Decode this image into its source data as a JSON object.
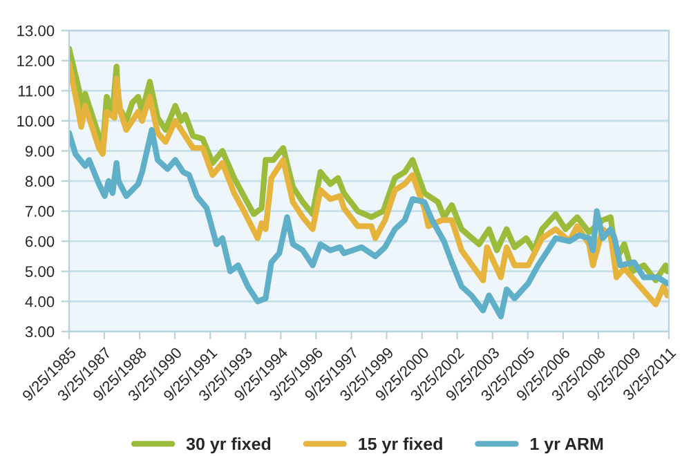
{
  "chart_data": {
    "type": "line",
    "ylim": [
      3,
      13
    ],
    "yticks": [
      {
        "value": 3,
        "label": "3.00"
      },
      {
        "value": 4,
        "label": "4.00"
      },
      {
        "value": 5,
        "label": "5.00"
      },
      {
        "value": 6,
        "label": "6.00"
      },
      {
        "value": 7,
        "label": "7.00"
      },
      {
        "value": 8,
        "label": "8.00"
      },
      {
        "value": 9,
        "label": "9.00"
      },
      {
        "value": 10,
        "label": "10.00"
      },
      {
        "value": 11,
        "label": "11.00"
      },
      {
        "value": 12,
        "label": "12.00"
      },
      {
        "value": 13,
        "label": "13.00"
      }
    ],
    "xlim": [
      "1985-09-25",
      "2011-03-25"
    ],
    "xticks": [
      {
        "value": "1985-09-25",
        "label": "9/25/1985"
      },
      {
        "value": "1987-03-25",
        "label": "3/25/1987"
      },
      {
        "value": "1988-09-25",
        "label": "9/25/1988"
      },
      {
        "value": "1990-03-25",
        "label": "3/25/1990"
      },
      {
        "value": "1991-09-25",
        "label": "9/25/1991"
      },
      {
        "value": "1993-03-25",
        "label": "3/25/1993"
      },
      {
        "value": "1994-09-25",
        "label": "9/25/1994"
      },
      {
        "value": "1996-03-25",
        "label": "3/25/1996"
      },
      {
        "value": "1997-09-25",
        "label": "9/25/1997"
      },
      {
        "value": "1999-03-25",
        "label": "3/25/1999"
      },
      {
        "value": "2000-09-25",
        "label": "9/25/2000"
      },
      {
        "value": "2002-03-25",
        "label": "3/25/2002"
      },
      {
        "value": "2003-09-25",
        "label": "9/25/2003"
      },
      {
        "value": "2005-03-25",
        "label": "3/25/2005"
      },
      {
        "value": "2006-09-25",
        "label": "9/25/2006"
      },
      {
        "value": "2008-03-25",
        "label": "3/25/2008"
      },
      {
        "value": "2009-09-25",
        "label": "9/25/2009"
      },
      {
        "value": "2011-03-25",
        "label": "3/25/2011"
      }
    ],
    "grid": "y",
    "legend": "bottom",
    "marker": "none",
    "line_style": "solid",
    "series": [
      {
        "name": "30 yr fixed",
        "color": "#9bbb3b",
        "x": [
          "1985-09-25",
          "1986-03",
          "1986-04",
          "1986-06",
          "1987-01",
          "1987-03",
          "1987-05",
          "1987-08",
          "1987-10",
          "1987-11",
          "1988-03",
          "1988-06",
          "1988-09",
          "1988-11",
          "1989-03",
          "1989-07",
          "1989-11",
          "1990-04",
          "1990-07",
          "1990-09",
          "1991-01",
          "1991-06",
          "1991-11",
          "1992-04",
          "1992-10",
          "1993-03",
          "1993-08",
          "1993-12",
          "1994-02",
          "1994-06",
          "1994-11",
          "1995-04",
          "1995-09",
          "1996-02",
          "1996-06",
          "1996-11",
          "1997-03",
          "1997-06",
          "1998-01",
          "1998-08",
          "1999-02",
          "1999-08",
          "2000-01",
          "2000-05",
          "2000-11",
          "2001-06",
          "2001-09",
          "2002-01",
          "2002-06",
          "2003-03",
          "2003-08",
          "2003-12",
          "2004-05",
          "2004-09",
          "2005-03",
          "2005-07",
          "2005-11",
          "2006-06",
          "2006-11",
          "2007-05",
          "2007-11",
          "2008-06",
          "2008-10",
          "2009-01",
          "2009-05",
          "2009-09",
          "2010-03",
          "2010-09",
          "2011-02",
          "2011-03"
        ],
        "values": [
          12.4,
          11.0,
          9.9,
          10.9,
          9.5,
          9.1,
          10.8,
          10.3,
          11.8,
          10.5,
          10.0,
          10.6,
          10.8,
          10.3,
          11.3,
          10.1,
          9.7,
          10.5,
          10.0,
          10.2,
          9.5,
          9.4,
          8.6,
          9.0,
          8.1,
          7.5,
          6.9,
          7.1,
          8.7,
          8.7,
          9.1,
          7.8,
          7.3,
          6.9,
          8.3,
          7.9,
          8.1,
          7.6,
          7.0,
          6.8,
          7.0,
          8.1,
          8.3,
          8.7,
          7.6,
          7.3,
          6.8,
          7.2,
          6.4,
          5.9,
          6.4,
          5.7,
          6.4,
          5.8,
          6.1,
          5.7,
          6.4,
          6.9,
          6.4,
          6.8,
          6.3,
          6.7,
          6.8,
          5.4,
          5.9,
          5.0,
          5.2,
          4.7,
          5.2,
          5.0
        ]
      },
      {
        "name": "15 yr fixed",
        "color": "#e6b43c",
        "x": [
          "1985-09-25",
          "1986-02",
          "1986-04",
          "1986-06",
          "1987-01",
          "1987-03",
          "1987-05",
          "1987-09",
          "1987-10",
          "1987-12",
          "1988-03",
          "1988-09",
          "1988-11",
          "1989-03",
          "1989-07",
          "1989-11",
          "1990-04",
          "1990-08",
          "1991-01",
          "1991-06",
          "1991-11",
          "1992-04",
          "1992-10",
          "1993-03",
          "1993-10",
          "1993-12",
          "1994-02",
          "1994-05",
          "1994-11",
          "1995-04",
          "1995-09",
          "1996-02",
          "1996-06",
          "1996-11",
          "1997-04",
          "1997-06",
          "1998-01",
          "1998-08",
          "1998-10",
          "1999-03",
          "1999-08",
          "2000-01",
          "2000-05",
          "2000-11",
          "2001-01",
          "2001-08",
          "2002-01",
          "2002-06",
          "2003-05",
          "2003-07",
          "2004-02",
          "2004-05",
          "2004-09",
          "2005-04",
          "2005-11",
          "2006-06",
          "2007-01",
          "2007-05",
          "2007-11",
          "2008-01",
          "2008-06",
          "2008-10",
          "2009-01",
          "2009-05",
          "2010-01",
          "2010-09",
          "2011-01",
          "2011-03"
        ],
        "values": [
          11.9,
          10.5,
          9.8,
          10.5,
          9.1,
          8.9,
          10.3,
          10.1,
          11.4,
          10.3,
          9.7,
          10.3,
          10.0,
          10.8,
          9.6,
          9.3,
          10.0,
          9.6,
          9.1,
          9.1,
          8.2,
          8.6,
          7.6,
          7.0,
          6.1,
          6.6,
          6.4,
          8.1,
          8.7,
          7.3,
          6.8,
          6.4,
          7.7,
          7.4,
          7.5,
          7.1,
          6.5,
          6.5,
          6.1,
          6.7,
          7.7,
          7.9,
          8.2,
          7.1,
          6.5,
          6.7,
          6.7,
          5.7,
          4.7,
          5.8,
          4.8,
          5.8,
          5.2,
          5.2,
          6.1,
          6.4,
          6.0,
          6.5,
          5.9,
          5.2,
          6.4,
          6.2,
          4.8,
          5.1,
          4.5,
          3.9,
          4.5,
          4.2
        ]
      },
      {
        "name": "1 yr ARM",
        "color": "#5fafc8",
        "x": [
          "1985-09-25",
          "1986-01",
          "1986-06",
          "1986-08",
          "1987-01",
          "1987-04",
          "1987-06",
          "1987-08",
          "1987-10",
          "1987-11",
          "1988-03",
          "1988-09",
          "1988-11",
          "1989-04",
          "1989-07",
          "1989-12",
          "1990-04",
          "1990-08",
          "1990-11",
          "1991-03",
          "1991-08",
          "1992-01",
          "1992-04",
          "1992-08",
          "1992-12",
          "1993-05",
          "1993-10",
          "1994-02",
          "1994-05",
          "1994-09",
          "1995-01",
          "1995-04",
          "1995-09",
          "1996-02",
          "1996-06",
          "1996-11",
          "1997-04",
          "1997-06",
          "1998-03",
          "1998-10",
          "1999-03",
          "1999-08",
          "2000-01",
          "2000-05",
          "2000-11",
          "2001-03",
          "2001-09",
          "2002-01",
          "2002-06",
          "2002-11",
          "2003-05",
          "2003-08",
          "2004-02",
          "2004-05",
          "2004-09",
          "2005-04",
          "2005-09",
          "2006-02",
          "2006-06",
          "2007-01",
          "2007-06",
          "2007-11",
          "2008-01",
          "2008-03",
          "2008-06",
          "2008-10",
          "2008-12",
          "2009-03",
          "2009-10",
          "2010-03",
          "2010-10",
          "2011-03"
        ],
        "values": [
          9.6,
          8.9,
          8.5,
          8.7,
          7.9,
          7.5,
          8.0,
          7.6,
          8.6,
          8.0,
          7.5,
          7.9,
          8.3,
          9.7,
          8.7,
          8.4,
          8.7,
          8.3,
          8.2,
          7.5,
          7.1,
          5.9,
          6.1,
          5.0,
          5.2,
          4.5,
          4.0,
          4.1,
          5.3,
          5.6,
          6.8,
          5.9,
          5.7,
          5.2,
          5.9,
          5.7,
          5.8,
          5.6,
          5.8,
          5.5,
          5.8,
          6.4,
          6.7,
          7.4,
          7.3,
          6.7,
          6.0,
          5.3,
          4.5,
          4.2,
          3.7,
          4.2,
          3.5,
          4.4,
          4.1,
          4.6,
          5.2,
          5.7,
          6.1,
          6.0,
          6.2,
          6.1,
          5.7,
          7.0,
          6.1,
          6.4,
          6.1,
          5.2,
          5.3,
          4.8,
          4.8,
          4.6
        ]
      }
    ]
  }
}
